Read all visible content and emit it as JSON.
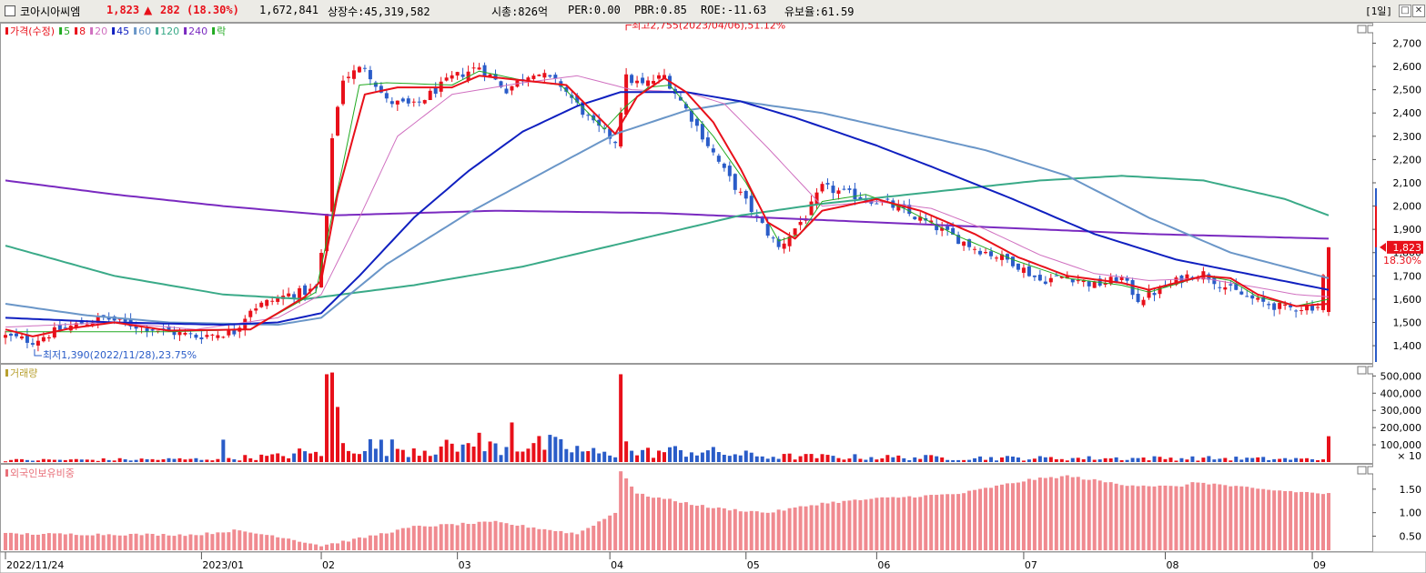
{
  "header": {
    "stock_name": "코아시아씨엠",
    "price": "1,823",
    "change_arrow": "▲",
    "change": "282",
    "change_pct": "(18.30%)",
    "volume": "1,672,841",
    "listed_shares": "상장수:45,319,582",
    "market_cap": "시총:826억",
    "per": "PER:0.00",
    "pbr": "PBR:0.85",
    "roe": "ROE:-11.63",
    "float_ratio": "유보율:61.59",
    "period": "[1일]"
  },
  "colors": {
    "up": "#e8101a",
    "down": "#2a5cc8",
    "ma5": "#22aa22",
    "ma8": "#e8101a",
    "ma20": "#d070c0",
    "ma45": "#1020c0",
    "ma60": "#6a96c8",
    "ma120": "#3aaa88",
    "ma240": "#7a2ac0"
  },
  "chart_data": [
    {
      "type": "candlestick",
      "legend": [
        {
          "label": "가격(수정)",
          "color": "#e8101a"
        },
        {
          "label": "5",
          "color": "#22aa22"
        },
        {
          "label": "8",
          "color": "#e8101a"
        },
        {
          "label": "20",
          "color": "#d070c0"
        },
        {
          "label": "45",
          "color": "#1020c0"
        },
        {
          "label": "60",
          "color": "#6a96c8"
        },
        {
          "label": "120",
          "color": "#3aaa88"
        },
        {
          "label": "240",
          "color": "#7a2ac0"
        },
        {
          "label": "락",
          "color": "#22aa22"
        }
      ],
      "ylim": [
        1330,
        2780
      ],
      "yticks": [
        1400,
        1500,
        1600,
        1700,
        1800,
        1900,
        2000,
        2100,
        2200,
        2300,
        2400,
        2500,
        2600,
        2700
      ],
      "ytick_labels": [
        "1,400",
        "1,500",
        "1,600",
        "1,700",
        "1,800",
        "1,900",
        "2,000",
        "2,100",
        "2,200",
        "2,300",
        "2,400",
        "2,500",
        "2,600",
        "2,700"
      ],
      "x_labels": [
        {
          "label": "2022/11/24",
          "session": 0
        },
        {
          "label": "2023/01",
          "session": 36
        },
        {
          "label": "02",
          "session": 58
        },
        {
          "label": "03",
          "session": 83
        },
        {
          "label": "04",
          "session": 111
        },
        {
          "label": "05",
          "session": 136
        },
        {
          "label": "06",
          "session": 160
        },
        {
          "label": "07",
          "session": 187
        },
        {
          "label": "08",
          "session": 213
        },
        {
          "label": "09",
          "session": 240
        }
      ],
      "sessions": 244,
      "high_note": "최고2,755(2023/04/06),51.12%",
      "high_session": 114,
      "high_value": 2755,
      "low_note": "최저1,390(2022/11/28),23.75%",
      "low_session": 3,
      "low_value": 1390,
      "last_price": "1,823",
      "last_pct": "18.30%",
      "last_value": 1823,
      "price_anchors": [
        [
          0,
          1440
        ],
        [
          5,
          1420
        ],
        [
          10,
          1470
        ],
        [
          18,
          1520
        ],
        [
          25,
          1480
        ],
        [
          35,
          1440
        ],
        [
          42,
          1460
        ],
        [
          45,
          1560
        ],
        [
          52,
          1620
        ],
        [
          57,
          1640
        ],
        [
          59,
          1950
        ],
        [
          60,
          2300
        ],
        [
          62,
          2550
        ],
        [
          66,
          2600
        ],
        [
          70,
          2450
        ],
        [
          75,
          2430
        ],
        [
          82,
          2550
        ],
        [
          87,
          2600
        ],
        [
          92,
          2500
        ],
        [
          97,
          2580
        ],
        [
          102,
          2520
        ],
        [
          108,
          2350
        ],
        [
          112,
          2280
        ],
        [
          114,
          2550
        ],
        [
          117,
          2520
        ],
        [
          121,
          2560
        ],
        [
          126,
          2380
        ],
        [
          132,
          2150
        ],
        [
          138,
          1950
        ],
        [
          142,
          1820
        ],
        [
          147,
          1960
        ],
        [
          150,
          2080
        ],
        [
          155,
          2050
        ],
        [
          162,
          2010
        ],
        [
          170,
          1920
        ],
        [
          178,
          1820
        ],
        [
          185,
          1760
        ],
        [
          190,
          1680
        ],
        [
          195,
          1700
        ],
        [
          200,
          1660
        ],
        [
          205,
          1690
        ],
        [
          208,
          1600
        ],
        [
          212,
          1640
        ],
        [
          217,
          1700
        ],
        [
          220,
          1710
        ],
        [
          225,
          1640
        ],
        [
          230,
          1590
        ],
        [
          235,
          1560
        ],
        [
          241,
          1570
        ],
        [
          243,
          1823
        ]
      ],
      "ma5_anchors": [
        [
          0,
          1460
        ],
        [
          30,
          1460
        ],
        [
          45,
          1470
        ],
        [
          57,
          1630
        ],
        [
          62,
          2180
        ],
        [
          65,
          2520
        ],
        [
          70,
          2530
        ],
        [
          82,
          2520
        ],
        [
          87,
          2580
        ],
        [
          95,
          2540
        ],
        [
          102,
          2520
        ],
        [
          110,
          2330
        ],
        [
          114,
          2430
        ],
        [
          118,
          2510
        ],
        [
          122,
          2520
        ],
        [
          130,
          2300
        ],
        [
          136,
          2100
        ],
        [
          142,
          1850
        ],
        [
          146,
          1880
        ],
        [
          150,
          2020
        ],
        [
          158,
          2050
        ],
        [
          165,
          1990
        ],
        [
          175,
          1870
        ],
        [
          185,
          1770
        ],
        [
          195,
          1690
        ],
        [
          205,
          1660
        ],
        [
          210,
          1630
        ],
        [
          220,
          1700
        ],
        [
          225,
          1680
        ],
        [
          230,
          1610
        ],
        [
          237,
          1570
        ],
        [
          243,
          1600
        ]
      ],
      "ma8_anchors": [
        [
          0,
          1470
        ],
        [
          5,
          1440
        ],
        [
          12,
          1475
        ],
        [
          20,
          1500
        ],
        [
          30,
          1465
        ],
        [
          45,
          1470
        ],
        [
          55,
          1610
        ],
        [
          58,
          1680
        ],
        [
          61,
          2050
        ],
        [
          66,
          2480
        ],
        [
          72,
          2510
        ],
        [
          82,
          2510
        ],
        [
          87,
          2560
        ],
        [
          95,
          2540
        ],
        [
          103,
          2520
        ],
        [
          112,
          2310
        ],
        [
          116,
          2470
        ],
        [
          121,
          2550
        ],
        [
          125,
          2490
        ],
        [
          130,
          2360
        ],
        [
          135,
          2160
        ],
        [
          140,
          1930
        ],
        [
          145,
          1860
        ],
        [
          150,
          1980
        ],
        [
          160,
          2030
        ],
        [
          168,
          1980
        ],
        [
          178,
          1880
        ],
        [
          186,
          1780
        ],
        [
          195,
          1700
        ],
        [
          205,
          1670
        ],
        [
          210,
          1640
        ],
        [
          220,
          1700
        ],
        [
          225,
          1690
        ],
        [
          230,
          1620
        ],
        [
          237,
          1570
        ],
        [
          243,
          1580
        ]
      ],
      "ma20_anchors": [
        [
          0,
          1480
        ],
        [
          10,
          1490
        ],
        [
          20,
          1500
        ],
        [
          35,
          1470
        ],
        [
          50,
          1520
        ],
        [
          58,
          1620
        ],
        [
          65,
          1950
        ],
        [
          72,
          2300
        ],
        [
          82,
          2480
        ],
        [
          95,
          2530
        ],
        [
          105,
          2560
        ],
        [
          115,
          2500
        ],
        [
          125,
          2490
        ],
        [
          132,
          2440
        ],
        [
          140,
          2250
        ],
        [
          150,
          2000
        ],
        [
          160,
          2020
        ],
        [
          170,
          1990
        ],
        [
          180,
          1900
        ],
        [
          190,
          1790
        ],
        [
          200,
          1710
        ],
        [
          210,
          1680
        ],
        [
          220,
          1690
        ],
        [
          230,
          1650
        ],
        [
          237,
          1620
        ],
        [
          243,
          1610
        ]
      ],
      "ma45_anchors": [
        [
          0,
          1520
        ],
        [
          20,
          1500
        ],
        [
          40,
          1490
        ],
        [
          50,
          1500
        ],
        [
          58,
          1540
        ],
        [
          65,
          1700
        ],
        [
          75,
          1950
        ],
        [
          85,
          2150
        ],
        [
          95,
          2320
        ],
        [
          105,
          2430
        ],
        [
          113,
          2490
        ],
        [
          125,
          2490
        ],
        [
          135,
          2450
        ],
        [
          145,
          2380
        ],
        [
          160,
          2260
        ],
        [
          170,
          2170
        ],
        [
          185,
          2030
        ],
        [
          200,
          1880
        ],
        [
          215,
          1770
        ],
        [
          230,
          1700
        ],
        [
          243,
          1640
        ]
      ],
      "ma60_anchors": [
        [
          0,
          1580
        ],
        [
          15,
          1530
        ],
        [
          30,
          1500
        ],
        [
          50,
          1490
        ],
        [
          58,
          1520
        ],
        [
          70,
          1750
        ],
        [
          85,
          1970
        ],
        [
          100,
          2160
        ],
        [
          112,
          2310
        ],
        [
          125,
          2410
        ],
        [
          135,
          2450
        ],
        [
          150,
          2400
        ],
        [
          165,
          2320
        ],
        [
          180,
          2240
        ],
        [
          195,
          2130
        ],
        [
          210,
          1950
        ],
        [
          225,
          1800
        ],
        [
          243,
          1690
        ]
      ],
      "ma120_anchors": [
        [
          0,
          1830
        ],
        [
          20,
          1700
        ],
        [
          40,
          1620
        ],
        [
          55,
          1600
        ],
        [
          75,
          1660
        ],
        [
          95,
          1740
        ],
        [
          115,
          1850
        ],
        [
          135,
          1960
        ],
        [
          150,
          2010
        ],
        [
          170,
          2060
        ],
        [
          190,
          2110
        ],
        [
          205,
          2130
        ],
        [
          220,
          2110
        ],
        [
          235,
          2030
        ],
        [
          243,
          1960
        ]
      ],
      "ma240_anchors": [
        [
          0,
          2110
        ],
        [
          20,
          2050
        ],
        [
          40,
          2000
        ],
        [
          60,
          1960
        ],
        [
          90,
          1980
        ],
        [
          120,
          1970
        ],
        [
          150,
          1940
        ],
        [
          180,
          1910
        ],
        [
          210,
          1880
        ],
        [
          243,
          1860
        ]
      ]
    },
    {
      "type": "bar",
      "title": "거래량",
      "ylim": [
        0,
        560000
      ],
      "yticks": [
        100000,
        200000,
        300000,
        400000,
        500000
      ],
      "ytick_labels": [
        "100,000",
        "200,000",
        "300,000",
        "400,000",
        "500,000"
      ],
      "unit_note": "× 10",
      "spikes": [
        [
          40,
          130000
        ],
        [
          56,
          50000
        ],
        [
          58,
          35000
        ],
        [
          59,
          510000
        ],
        [
          60,
          520000
        ],
        [
          61,
          320000
        ],
        [
          62,
          110000
        ],
        [
          85,
          110000
        ],
        [
          87,
          170000
        ],
        [
          93,
          230000
        ],
        [
          113,
          510000
        ],
        [
          114,
          120000
        ],
        [
          243,
          150000
        ]
      ],
      "base_anchors": [
        [
          0,
          10000
        ],
        [
          35,
          15000
        ],
        [
          50,
          30000
        ],
        [
          64,
          90000
        ],
        [
          75,
          70000
        ],
        [
          90,
          80000
        ],
        [
          100,
          90000
        ],
        [
          110,
          40000
        ],
        [
          125,
          60000
        ],
        [
          140,
          30000
        ],
        [
          160,
          25000
        ],
        [
          190,
          20000
        ],
        [
          220,
          20000
        ],
        [
          240,
          15000
        ]
      ]
    },
    {
      "type": "bar",
      "title": "외국인보유비중",
      "ylim": [
        0.2,
        2.0
      ],
      "yticks": [
        0.5,
        1.0,
        1.5
      ],
      "ytick_labels": [
        "0.50",
        "1.00",
        "1.50"
      ],
      "anchors": [
        [
          0,
          0.55
        ],
        [
          35,
          0.53
        ],
        [
          42,
          0.62
        ],
        [
          50,
          0.5
        ],
        [
          58,
          0.3
        ],
        [
          65,
          0.45
        ],
        [
          75,
          0.7
        ],
        [
          90,
          0.8
        ],
        [
          105,
          0.55
        ],
        [
          112,
          1.0
        ],
        [
          113,
          1.9
        ],
        [
          116,
          1.4
        ],
        [
          130,
          1.1
        ],
        [
          140,
          1.0
        ],
        [
          150,
          1.2
        ],
        [
          160,
          1.3
        ],
        [
          175,
          1.4
        ],
        [
          188,
          1.7
        ],
        [
          195,
          1.78
        ],
        [
          205,
          1.6
        ],
        [
          215,
          1.55
        ],
        [
          219,
          1.65
        ],
        [
          230,
          1.5
        ],
        [
          243,
          1.4
        ]
      ]
    }
  ]
}
